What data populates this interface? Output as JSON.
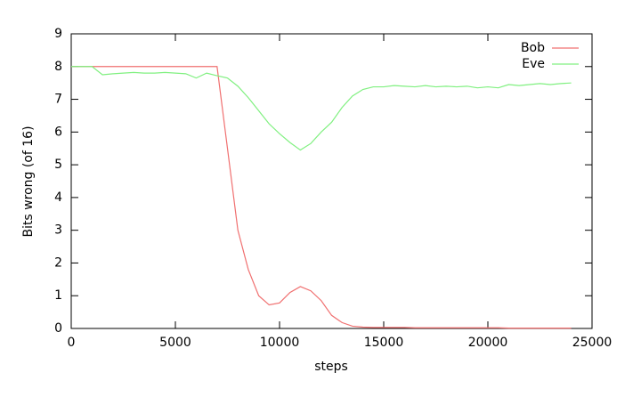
{
  "chart_data": {
    "type": "line",
    "xlabel": "steps",
    "ylabel": "Bits wrong (of 16)",
    "x": [
      0,
      500,
      1000,
      1500,
      2000,
      2500,
      3000,
      3500,
      4000,
      4500,
      5000,
      5500,
      6000,
      6500,
      7000,
      7500,
      8000,
      8500,
      9000,
      9500,
      10000,
      10500,
      11000,
      11500,
      12000,
      12500,
      13000,
      13500,
      14000,
      14500,
      15000,
      15500,
      16000,
      16500,
      17000,
      17500,
      18000,
      18500,
      19000,
      19500,
      20000,
      20500,
      21000,
      21500,
      22000,
      22500,
      23000,
      23500,
      24000
    ],
    "series": [
      {
        "name": "Bob",
        "color": "#f07070",
        "values": [
          8,
          8,
          8,
          8,
          8,
          8,
          8,
          8,
          8,
          8,
          8,
          8,
          8,
          8,
          8,
          5.5,
          3.0,
          1.8,
          1.0,
          0.72,
          0.78,
          1.1,
          1.28,
          1.15,
          0.85,
          0.4,
          0.18,
          0.07,
          0.04,
          0.03,
          0.03,
          0.03,
          0.03,
          0.02,
          0.02,
          0.02,
          0.02,
          0.02,
          0.02,
          0.02,
          0.02,
          0.02,
          0.01,
          0.01,
          0.01,
          0.01,
          0.01,
          0.01,
          0.01
        ]
      },
      {
        "name": "Eve",
        "color": "#80f080",
        "values": [
          8,
          8,
          8,
          7.75,
          7.78,
          7.8,
          7.82,
          7.8,
          7.8,
          7.82,
          7.8,
          7.78,
          7.65,
          7.8,
          7.72,
          7.65,
          7.4,
          7.05,
          6.65,
          6.25,
          5.95,
          5.68,
          5.45,
          5.65,
          6.0,
          6.3,
          6.75,
          7.1,
          7.3,
          7.38,
          7.38,
          7.42,
          7.4,
          7.38,
          7.42,
          7.38,
          7.4,
          7.38,
          7.4,
          7.35,
          7.38,
          7.35,
          7.45,
          7.42,
          7.45,
          7.48,
          7.45,
          7.48,
          7.5
        ]
      }
    ],
    "xlim": [
      0,
      25000
    ],
    "xticks": [
      0,
      5000,
      10000,
      15000,
      20000,
      25000
    ],
    "ylim": [
      0,
      9
    ],
    "yticks": [
      0,
      1,
      2,
      3,
      4,
      5,
      6,
      7,
      8,
      9
    ],
    "legend": "top-right"
  }
}
